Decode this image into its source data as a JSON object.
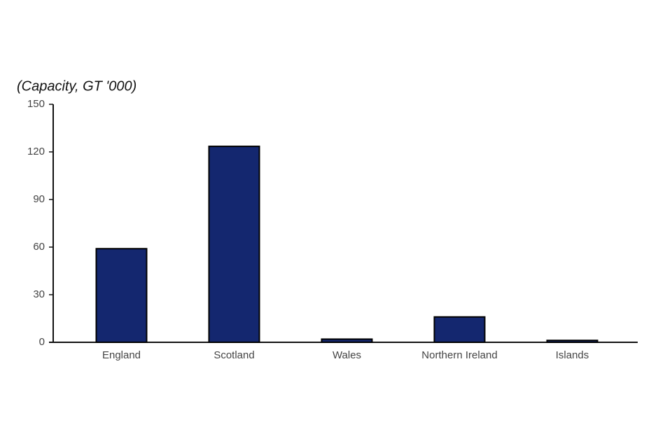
{
  "chart_data": {
    "type": "bar",
    "title": "(Capacity, GT '000)",
    "categories": [
      "England",
      "Scotland",
      "Wales",
      "Northern Ireland",
      "Islands"
    ],
    "values": [
      59,
      123.5,
      2,
      16,
      1.2
    ],
    "color": "#14276f",
    "ylim": [
      0,
      150
    ],
    "yticks": [
      0,
      30,
      60,
      90,
      120,
      150
    ],
    "grid": false
  }
}
